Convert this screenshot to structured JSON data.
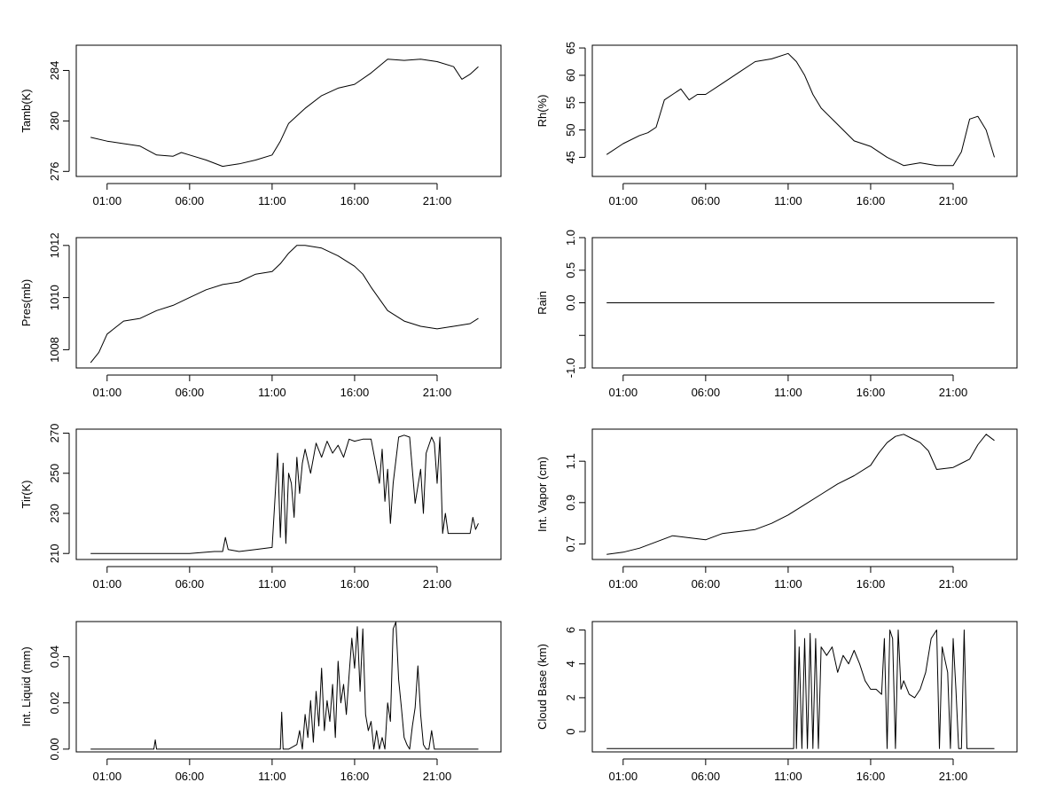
{
  "chart_data": [
    {
      "type": "line",
      "ylabel": "Tamb(K)",
      "x_ticks": [
        "01:00",
        "06:00",
        "11:00",
        "16:00",
        "21:00"
      ],
      "y_ticks": [
        276,
        280,
        284
      ],
      "ylim": [
        275.6,
        286.0
      ],
      "x": [
        "00:00",
        "01:00",
        "02:00",
        "03:00",
        "04:00",
        "05:00",
        "05:30",
        "06:00",
        "07:00",
        "08:00",
        "09:00",
        "10:00",
        "11:00",
        "11:30",
        "12:00",
        "13:00",
        "14:00",
        "15:00",
        "16:00",
        "17:00",
        "18:00",
        "19:00",
        "20:00",
        "21:00",
        "22:00",
        "22:30",
        "23:00",
        "23:30"
      ],
      "values": [
        278.7,
        278.4,
        278.2,
        278.0,
        277.3,
        277.2,
        277.5,
        277.3,
        276.9,
        276.4,
        276.6,
        276.9,
        277.3,
        278.4,
        279.8,
        281.0,
        282.0,
        282.6,
        282.9,
        283.8,
        284.9,
        284.8,
        284.9,
        284.7,
        284.3,
        283.3,
        283.7,
        284.3
      ]
    },
    {
      "type": "line",
      "ylabel": "Rh(%)",
      "x_ticks": [
        "01:00",
        "06:00",
        "11:00",
        "16:00",
        "21:00"
      ],
      "y_ticks": [
        45,
        50,
        55,
        60,
        65
      ],
      "ylim": [
        41.5,
        65.5
      ],
      "x": [
        "00:00",
        "01:00",
        "02:00",
        "02:30",
        "03:00",
        "03:30",
        "04:00",
        "04:30",
        "05:00",
        "05:30",
        "06:00",
        "07:00",
        "08:00",
        "09:00",
        "10:00",
        "11:00",
        "11:30",
        "12:00",
        "12:30",
        "13:00",
        "14:00",
        "15:00",
        "16:00",
        "17:00",
        "18:00",
        "19:00",
        "20:00",
        "21:00",
        "21:30",
        "22:00",
        "22:30",
        "23:00",
        "23:30"
      ],
      "values": [
        45.5,
        47.5,
        49.0,
        49.5,
        50.5,
        55.5,
        56.5,
        57.5,
        55.5,
        56.5,
        56.5,
        58.5,
        60.5,
        62.5,
        63.0,
        64.0,
        62.5,
        60.0,
        56.5,
        54.0,
        51.0,
        48.0,
        47.0,
        45.0,
        43.5,
        44.0,
        43.5,
        43.5,
        46.0,
        52.0,
        52.5,
        50.0,
        45.0
      ]
    },
    {
      "type": "line",
      "ylabel": "Pres(mb)",
      "x_ticks": [
        "01:00",
        "06:00",
        "11:00",
        "16:00",
        "21:00"
      ],
      "y_ticks": [
        1008,
        1010,
        1012
      ],
      "ylim": [
        1007.3,
        1012.3
      ],
      "x": [
        "00:00",
        "00:30",
        "01:00",
        "02:00",
        "03:00",
        "04:00",
        "05:00",
        "06:00",
        "07:00",
        "08:00",
        "09:00",
        "10:00",
        "11:00",
        "11:30",
        "12:00",
        "12:30",
        "13:00",
        "14:00",
        "15:00",
        "16:00",
        "16:30",
        "17:00",
        "18:00",
        "19:00",
        "20:00",
        "21:00",
        "22:00",
        "23:00",
        "23:30"
      ],
      "values": [
        1007.5,
        1007.9,
        1008.6,
        1009.1,
        1009.2,
        1009.5,
        1009.7,
        1010.0,
        1010.3,
        1010.5,
        1010.6,
        1010.9,
        1011.0,
        1011.3,
        1011.7,
        1012.0,
        1012.0,
        1011.9,
        1011.6,
        1011.2,
        1010.9,
        1010.4,
        1009.5,
        1009.1,
        1008.9,
        1008.8,
        1008.9,
        1009.0,
        1009.2
      ]
    },
    {
      "type": "line",
      "ylabel": "Rain",
      "x_ticks": [
        "01:00",
        "06:00",
        "11:00",
        "16:00",
        "21:00"
      ],
      "y_ticks": [
        -1.0,
        -0.5,
        0.0,
        0.5,
        1.0
      ],
      "y_tick_labels": [
        "-1.0",
        "",
        "0.0",
        "0.5",
        "1.0"
      ],
      "ylim": [
        -1.0,
        1.0
      ],
      "x": [
        "00:00",
        "23:30"
      ],
      "values": [
        0,
        0
      ]
    },
    {
      "type": "line",
      "ylabel": "Tir(K)",
      "x_ticks": [
        "01:00",
        "06:00",
        "11:00",
        "16:00",
        "21:00"
      ],
      "y_ticks": [
        210,
        230,
        250,
        270
      ],
      "ylim": [
        207,
        272
      ],
      "x": [
        "00:00",
        "02:00",
        "04:00",
        "06:00",
        "07:30",
        "08:00",
        "08:10",
        "08:20",
        "09:00",
        "10:00",
        "11:00",
        "11:20",
        "11:30",
        "11:40",
        "11:50",
        "12:00",
        "12:10",
        "12:20",
        "12:30",
        "12:40",
        "12:50",
        "13:00",
        "13:20",
        "13:40",
        "14:00",
        "14:20",
        "14:40",
        "15:00",
        "15:20",
        "15:40",
        "16:00",
        "16:30",
        "17:00",
        "17:30",
        "17:40",
        "17:50",
        "18:00",
        "18:10",
        "18:20",
        "18:40",
        "19:00",
        "19:20",
        "19:40",
        "20:00",
        "20:10",
        "20:20",
        "20:40",
        "20:50",
        "21:00",
        "21:10",
        "21:20",
        "21:30",
        "21:40",
        "22:00",
        "22:30",
        "23:00",
        "23:10",
        "23:20",
        "23:30"
      ],
      "values": [
        210,
        210,
        210,
        210,
        211,
        211,
        218,
        212,
        211,
        212,
        213,
        260,
        218,
        255,
        215,
        250,
        245,
        228,
        258,
        240,
        255,
        262,
        250,
        265,
        258,
        266,
        260,
        264,
        258,
        267,
        266,
        267,
        267,
        245,
        262,
        236,
        252,
        225,
        245,
        268,
        269,
        268,
        235,
        252,
        230,
        260,
        268,
        265,
        245,
        268,
        220,
        230,
        220,
        220,
        220,
        220,
        228,
        222,
        225
      ]
    },
    {
      "type": "line",
      "ylabel": "Int. Vapor (cm)",
      "x_ticks": [
        "01:00",
        "06:00",
        "11:00",
        "16:00",
        "21:00"
      ],
      "y_ticks": [
        0.7,
        0.9,
        1.1
      ],
      "ylim": [
        0.625,
        1.255
      ],
      "x": [
        "00:00",
        "01:00",
        "02:00",
        "03:00",
        "04:00",
        "05:00",
        "06:00",
        "07:00",
        "08:00",
        "09:00",
        "10:00",
        "11:00",
        "12:00",
        "13:00",
        "14:00",
        "15:00",
        "16:00",
        "16:30",
        "17:00",
        "17:30",
        "18:00",
        "18:30",
        "19:00",
        "19:30",
        "20:00",
        "21:00",
        "21:30",
        "22:00",
        "22:30",
        "23:00",
        "23:30"
      ],
      "values": [
        0.65,
        0.66,
        0.68,
        0.71,
        0.74,
        0.73,
        0.72,
        0.75,
        0.76,
        0.77,
        0.8,
        0.84,
        0.89,
        0.94,
        0.99,
        1.03,
        1.08,
        1.14,
        1.19,
        1.22,
        1.23,
        1.21,
        1.19,
        1.15,
        1.06,
        1.07,
        1.09,
        1.11,
        1.18,
        1.23,
        1.2
      ]
    },
    {
      "type": "line",
      "ylabel": "Int. Liquid (mm)",
      "x_ticks": [
        "01:00",
        "06:00",
        "11:00",
        "16:00",
        "21:00"
      ],
      "y_ticks": [
        0.0,
        0.02,
        0.04
      ],
      "y_tick_labels": [
        "0.00",
        "0.02",
        "0.04"
      ],
      "ylim": [
        -0.0012,
        0.0552
      ],
      "x": [
        "00:00",
        "03:00",
        "03:50",
        "03:55",
        "04:00",
        "06:00",
        "09:00",
        "11:00",
        "11:30",
        "11:35",
        "11:40",
        "12:00",
        "12:30",
        "12:40",
        "12:50",
        "13:00",
        "13:10",
        "13:20",
        "13:30",
        "13:40",
        "13:50",
        "14:00",
        "14:10",
        "14:20",
        "14:30",
        "14:40",
        "14:50",
        "15:00",
        "15:10",
        "15:20",
        "15:30",
        "15:40",
        "15:50",
        "16:00",
        "16:10",
        "16:20",
        "16:30",
        "16:40",
        "16:50",
        "17:00",
        "17:10",
        "17:20",
        "17:30",
        "17:40",
        "17:50",
        "18:00",
        "18:10",
        "18:20",
        "18:30",
        "18:40",
        "18:50",
        "19:00",
        "19:10",
        "19:20",
        "19:30",
        "19:40",
        "19:50",
        "20:00",
        "20:10",
        "20:20",
        "20:30",
        "20:40",
        "20:50",
        "21:00",
        "21:10",
        "21:20",
        "21:30",
        "21:40",
        "21:50",
        "22:00",
        "22:10",
        "22:20",
        "23:00",
        "23:30"
      ],
      "values": [
        0,
        0,
        0,
        0.004,
        0,
        0,
        0,
        0,
        0,
        0.016,
        0,
        0,
        0.002,
        0.008,
        0,
        0.015,
        0.005,
        0.021,
        0.003,
        0.025,
        0.01,
        0.035,
        0.008,
        0.021,
        0.012,
        0.028,
        0.005,
        0.038,
        0.02,
        0.028,
        0.015,
        0.032,
        0.048,
        0.035,
        0.053,
        0.025,
        0.052,
        0.015,
        0.008,
        0.012,
        0,
        0.008,
        0,
        0.005,
        0,
        0.02,
        0.012,
        0.052,
        0.055,
        0.03,
        0.018,
        0.005,
        0.002,
        0,
        0.01,
        0.018,
        0.036,
        0.015,
        0.002,
        0,
        0,
        0.008,
        0,
        0,
        0,
        0,
        0,
        0,
        0,
        0,
        0,
        0,
        0,
        0
      ]
    },
    {
      "type": "line",
      "ylabel": "Cloud Base (km)",
      "x_ticks": [
        "01:00",
        "06:00",
        "11:00",
        "16:00",
        "21:00"
      ],
      "y_ticks": [
        0,
        2,
        4,
        6
      ],
      "ylim": [
        -1.2,
        6.5
      ],
      "x": [
        "00:00",
        "03:00",
        "06:00",
        "09:00",
        "11:00",
        "11:20",
        "11:25",
        "11:30",
        "11:40",
        "11:50",
        "12:00",
        "12:10",
        "12:20",
        "12:30",
        "12:40",
        "12:50",
        "13:00",
        "13:20",
        "13:40",
        "14:00",
        "14:20",
        "14:40",
        "15:00",
        "15:20",
        "15:40",
        "16:00",
        "16:20",
        "16:40",
        "16:50",
        "17:00",
        "17:10",
        "17:20",
        "17:30",
        "17:40",
        "17:50",
        "18:00",
        "18:20",
        "18:40",
        "19:00",
        "19:20",
        "19:40",
        "20:00",
        "20:10",
        "20:20",
        "20:40",
        "20:50",
        "21:00",
        "21:10",
        "21:20",
        "21:30",
        "21:40",
        "21:50",
        "22:00",
        "22:10",
        "23:00",
        "23:30"
      ],
      "values": [
        -1,
        -1,
        -1,
        -1,
        -1,
        -1,
        6,
        -1,
        5,
        -1,
        5.5,
        -1,
        5.8,
        -1,
        5.5,
        -1,
        5,
        4.5,
        5,
        3.5,
        4.5,
        4,
        4.8,
        4,
        3,
        2.5,
        2.5,
        2.2,
        5.5,
        -1,
        6,
        5.5,
        -1,
        6,
        2.5,
        3,
        2.2,
        2,
        2.5,
        3.5,
        5.5,
        6,
        -1,
        5,
        3.5,
        -1,
        5.5,
        2.5,
        -1,
        -1,
        6,
        -1,
        -1,
        -1,
        -1,
        -1
      ]
    }
  ]
}
